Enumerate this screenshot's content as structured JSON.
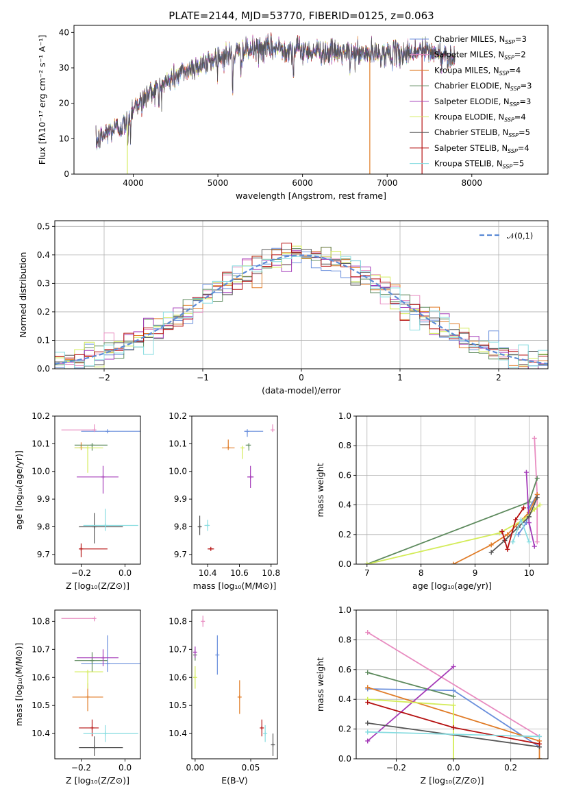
{
  "figure_title": "PLATE=2144, MJD=53770, FIBERID=0125, z=0.063",
  "colors": {
    "Chabrier MILES": "#6a8fdc",
    "Salpeter MILES": "#e88bc0",
    "Kroupa MILES": "#e07b26",
    "Chabrier ELODIE": "#5d8a5d",
    "Salpeter ELODIE": "#a43ab8",
    "Kroupa ELODIE": "#d4ec5a",
    "Chabrier STELIB": "#555555",
    "Salpeter STELIB": "#b51010",
    "Kroupa STELIB": "#86dce0"
  },
  "chart_data": [
    {
      "id": "spectrum",
      "type": "line",
      "title": "PLATE=2144, MJD=53770, FIBERID=0125, z=0.063",
      "xlabel": "wavelength [Angstrom, rest frame]",
      "ylabel": "Flux [fλ10⁻¹⁷ erg cm⁻² s⁻¹ A⁻¹]",
      "xlim": [
        3300,
        8900
      ],
      "ylim": [
        0,
        42
      ],
      "xticks": [
        4000,
        5000,
        6000,
        7000,
        8000
      ],
      "yticks": [
        0,
        10,
        20,
        30,
        40
      ],
      "grid": false,
      "legend_position": "right",
      "legend": [
        {
          "name": "Chabrier MILES",
          "sub": "N",
          "subscript": "SSP",
          "suffix": "=3"
        },
        {
          "name": "Salpeter MILES",
          "sub": "N",
          "subscript": "SSP",
          "suffix": "=2"
        },
        {
          "name": "Kroupa MILES",
          "sub": "N",
          "subscript": "SSP",
          "suffix": "=4"
        },
        {
          "name": "Chabrier ELODIE",
          "sub": "N",
          "subscript": "SSP",
          "suffix": "=3"
        },
        {
          "name": "Salpeter ELODIE",
          "sub": "N",
          "subscript": "SSP",
          "suffix": "=3"
        },
        {
          "name": "Kroupa ELODIE",
          "sub": "N",
          "subscript": "SSP",
          "suffix": "=4"
        },
        {
          "name": "Chabrier STELIB",
          "sub": "N",
          "subscript": "SSP",
          "suffix": "=5"
        },
        {
          "name": "Salpeter STELIB",
          "sub": "N",
          "subscript": "SSP",
          "suffix": "=4"
        },
        {
          "name": "Kroupa STELIB",
          "sub": "N",
          "subscript": "SSP",
          "suffix": "=5"
        }
      ],
      "continuum": {
        "x": [
          3560,
          3700,
          3900,
          4000,
          4200,
          4400,
          4600,
          4800,
          5000,
          5200,
          5400,
          5600,
          5800,
          6000,
          6300,
          6600,
          6900,
          7200,
          7400,
          7600,
          7800
        ],
        "y": [
          9,
          12,
          14,
          19,
          23,
          26,
          29,
          31,
          33,
          34,
          35,
          35.5,
          35.5,
          35,
          34.5,
          34,
          34,
          34,
          35,
          34,
          33
        ]
      },
      "absorption_lines": [
        {
          "x": 3934,
          "depth": 8
        },
        {
          "x": 3969,
          "depth": 7
        },
        {
          "x": 4102,
          "depth": 5
        },
        {
          "x": 4304,
          "depth": 6
        },
        {
          "x": 4861,
          "depth": 5
        },
        {
          "x": 5175,
          "depth": 10
        },
        {
          "x": 5270,
          "depth": 4
        },
        {
          "x": 5893,
          "depth": 8
        },
        {
          "x": 6563,
          "depth": 3
        }
      ],
      "drop_lines": [
        {
          "x": 3930,
          "y_from": 14,
          "y_to": 0,
          "color_key": "Kroupa ELODIE"
        },
        {
          "x": 6795,
          "y_from": 33,
          "y_to": 0,
          "color_key": "Kroupa MILES"
        },
        {
          "x": 7412,
          "y_from": 34,
          "y_to": 0,
          "color_key": "Salpeter STELIB"
        }
      ]
    },
    {
      "id": "residuals",
      "type": "bar",
      "xlabel": "(data-model)/error",
      "ylabel": "Normed distribution",
      "xlim": [
        -2.5,
        2.5
      ],
      "ylim": [
        0,
        0.52
      ],
      "xticks": [
        -2,
        -1,
        0,
        1,
        2
      ],
      "yticks": [
        0.0,
        0.1,
        0.2,
        0.3,
        0.4,
        0.5
      ],
      "grid": true,
      "bin_width": 0.1,
      "legend_position": "top-right",
      "reference_curve": {
        "name": "𝒩(0,1)",
        "mean": 0,
        "sigma": 1,
        "color": "#5b8bd6"
      }
    },
    {
      "id": "age-vs-Z",
      "type": "scatter",
      "xlabel": "Z [log₁₀(Z/Z⊙)]",
      "ylabel": "age  [log₁₀(age/yr)]",
      "xlim": [
        -0.32,
        0.07
      ],
      "ylim": [
        9.665,
        10.2
      ],
      "xticks": [
        -0.2,
        0.0
      ],
      "yticks": [
        9.7,
        9.8,
        9.9,
        10.0,
        10.1,
        10.2
      ],
      "grid": false,
      "points": [
        {
          "model": "Chabrier MILES",
          "x": -0.08,
          "y": 10.145,
          "xerr_lo": 0.12,
          "xerr_hi": 0.16,
          "yerr_lo": 0.0,
          "yerr_hi": 0.0
        },
        {
          "model": "Salpeter MILES",
          "x": -0.14,
          "y": 10.15,
          "xerr_lo": 0.15,
          "xerr_hi": 0.0,
          "yerr_lo": 0.0,
          "yerr_hi": 0.02
        },
        {
          "model": "Kroupa MILES",
          "x": -0.2,
          "y": 10.085,
          "xerr_lo": 0.03,
          "xerr_hi": 0.03,
          "yerr_lo": 0.0,
          "yerr_hi": 0.02
        },
        {
          "model": "Chabrier ELODIE",
          "x": -0.15,
          "y": 10.095,
          "xerr_lo": 0.08,
          "xerr_hi": 0.07,
          "yerr_lo": 0.02,
          "yerr_hi": 0.0
        },
        {
          "model": "Salpeter ELODIE",
          "x": -0.1,
          "y": 9.98,
          "xerr_lo": 0.12,
          "xerr_hi": 0.07,
          "yerr_lo": 0.06,
          "yerr_hi": 0.04
        },
        {
          "model": "Kroupa ELODIE",
          "x": -0.17,
          "y": 10.085,
          "xerr_lo": 0.06,
          "xerr_hi": 0.07,
          "yerr_lo": 0.09,
          "yerr_hi": 0.0
        },
        {
          "model": "Chabrier STELIB",
          "x": -0.14,
          "y": 9.8,
          "xerr_lo": 0.07,
          "xerr_hi": 0.13,
          "yerr_lo": 0.06,
          "yerr_hi": 0.05
        },
        {
          "model": "Salpeter STELIB",
          "x": -0.2,
          "y": 9.72,
          "xerr_lo": 0.01,
          "xerr_hi": 0.12,
          "yerr_lo": 0.03,
          "yerr_hi": 0.02
        },
        {
          "model": "Kroupa STELIB",
          "x": -0.09,
          "y": 9.805,
          "xerr_lo": 0.1,
          "xerr_hi": 0.15,
          "yerr_lo": 0.02,
          "yerr_hi": 0.06
        }
      ]
    },
    {
      "id": "age-vs-mass",
      "type": "scatter",
      "xlabel": "mass [log₁₀(M/M⊙)]",
      "ylabel": "",
      "xlim": [
        10.3,
        10.84
      ],
      "ylim": [
        9.665,
        10.2
      ],
      "xticks": [
        10.4,
        10.6,
        10.8
      ],
      "yticks": [
        9.7,
        9.8,
        9.9,
        10.0,
        10.1,
        10.2
      ],
      "grid": false,
      "points": [
        {
          "model": "Chabrier MILES",
          "x": 10.65,
          "y": 10.145,
          "xerr_lo": 0.02,
          "xerr_hi": 0.1,
          "yerr_lo": 0.02,
          "yerr_hi": 0.0
        },
        {
          "model": "Salpeter MILES",
          "x": 10.81,
          "y": 10.15,
          "xerr_lo": 0.0,
          "xerr_hi": 0.0,
          "yerr_lo": 0.0,
          "yerr_hi": 0.02
        },
        {
          "model": "Kroupa MILES",
          "x": 10.53,
          "y": 10.085,
          "xerr_lo": 0.04,
          "xerr_hi": 0.04,
          "yerr_lo": 0.0,
          "yerr_hi": 0.03
        },
        {
          "model": "Chabrier ELODIE",
          "x": 10.66,
          "y": 10.095,
          "xerr_lo": 0.02,
          "xerr_hi": 0.0,
          "yerr_lo": 0.02,
          "yerr_hi": 0.0
        },
        {
          "model": "Salpeter ELODIE",
          "x": 10.67,
          "y": 9.98,
          "xerr_lo": 0.02,
          "xerr_hi": 0.02,
          "yerr_lo": 0.04,
          "yerr_hi": 0.04
        },
        {
          "model": "Kroupa ELODIE",
          "x": 10.62,
          "y": 10.085,
          "xerr_lo": 0.0,
          "xerr_hi": 0.0,
          "yerr_lo": 0.04,
          "yerr_hi": 0.0
        },
        {
          "model": "Chabrier STELIB",
          "x": 10.35,
          "y": 9.8,
          "xerr_lo": 0.01,
          "xerr_hi": 0.01,
          "yerr_lo": 0.03,
          "yerr_hi": 0.04
        },
        {
          "model": "Salpeter STELIB",
          "x": 10.42,
          "y": 9.72,
          "xerr_lo": 0.02,
          "xerr_hi": 0.02,
          "yerr_lo": 0.0,
          "yerr_hi": 0.0
        },
        {
          "model": "Kroupa STELIB",
          "x": 10.4,
          "y": 9.805,
          "xerr_lo": 0.02,
          "xerr_hi": 0.01,
          "yerr_lo": 0.02,
          "yerr_hi": 0.02
        }
      ]
    },
    {
      "id": "weight-vs-age",
      "type": "line",
      "xlabel": "age  [log₁₀(age/yr)]",
      "ylabel": "mass weight",
      "xlim": [
        6.8,
        10.35
      ],
      "ylim": [
        0,
        1.0
      ],
      "xticks": [
        7,
        8,
        9,
        10
      ],
      "yticks": [
        0.0,
        0.2,
        0.4,
        0.6,
        0.8,
        1.0
      ],
      "grid": true,
      "series": [
        {
          "model": "Chabrier MILES",
          "x": [
            9.8,
            9.95,
            10.0,
            10.15
          ],
          "y": [
            0.2,
            0.28,
            0.38,
            0.47
          ]
        },
        {
          "model": "Salpeter MILES",
          "x": [
            10.1,
            10.15,
            10.15
          ],
          "y": [
            0.85,
            0.47,
            0.15
          ]
        },
        {
          "model": "Kroupa MILES",
          "x": [
            8.6,
            9.3,
            9.6,
            10.0,
            10.15
          ],
          "y": [
            0.0,
            0.13,
            0.2,
            0.35,
            0.47
          ]
        },
        {
          "model": "Chabrier ELODIE",
          "x": [
            7.0,
            10.0,
            10.15
          ],
          "y": [
            0.0,
            0.42,
            0.58
          ]
        },
        {
          "model": "Salpeter ELODIE",
          "x": [
            9.95,
            10.0,
            10.1
          ],
          "y": [
            0.62,
            0.28,
            0.12
          ]
        },
        {
          "model": "Kroupa ELODIE",
          "x": [
            7.0,
            9.45,
            9.9,
            10.1,
            10.2
          ],
          "y": [
            0.0,
            0.21,
            0.3,
            0.37,
            0.4
          ]
        },
        {
          "model": "Chabrier STELIB",
          "x": [
            9.3,
            9.55,
            9.8,
            10.0,
            10.15
          ],
          "y": [
            0.08,
            0.16,
            0.25,
            0.32,
            0.45
          ]
        },
        {
          "model": "Salpeter STELIB",
          "x": [
            9.5,
            9.6,
            9.75,
            9.9
          ],
          "y": [
            0.22,
            0.1,
            0.3,
            0.38
          ]
        },
        {
          "model": "Kroupa STELIB",
          "x": [
            9.7,
            9.85,
            10.0
          ],
          "y": [
            0.15,
            0.3,
            0.15
          ]
        }
      ]
    },
    {
      "id": "mass-vs-Z",
      "type": "scatter",
      "xlabel": "Z [log₁₀(Z/Z⊙)]",
      "ylabel": "mass [log₁₀(M/M⊙)]",
      "xlim": [
        -0.32,
        0.07
      ],
      "ylim": [
        10.31,
        10.84
      ],
      "xticks": [
        -0.2,
        0.0
      ],
      "yticks": [
        10.4,
        10.5,
        10.6,
        10.7,
        10.8
      ],
      "grid": false,
      "points": [
        {
          "model": "Chabrier MILES",
          "x": -0.08,
          "y": 10.65,
          "xerr_lo": 0.12,
          "xerr_hi": 0.16,
          "yerr_lo": 0.03,
          "yerr_hi": 0.1
        },
        {
          "model": "Salpeter MILES",
          "x": -0.14,
          "y": 10.81,
          "xerr_lo": 0.15,
          "xerr_hi": 0.0,
          "yerr_lo": 0.01,
          "yerr_hi": 0.0
        },
        {
          "model": "Kroupa MILES",
          "x": -0.17,
          "y": 10.53,
          "xerr_lo": 0.07,
          "xerr_hi": 0.07,
          "yerr_lo": 0.05,
          "yerr_hi": 0.05
        },
        {
          "model": "Chabrier ELODIE",
          "x": -0.15,
          "y": 10.66,
          "xerr_lo": 0.08,
          "xerr_hi": 0.07,
          "yerr_lo": 0.04,
          "yerr_hi": 0.03
        },
        {
          "model": "Salpeter ELODIE",
          "x": -0.1,
          "y": 10.67,
          "xerr_lo": 0.12,
          "xerr_hi": 0.07,
          "yerr_lo": 0.03,
          "yerr_hi": 0.03
        },
        {
          "model": "Kroupa ELODIE",
          "x": -0.17,
          "y": 10.62,
          "xerr_lo": 0.06,
          "xerr_hi": 0.07,
          "yerr_lo": 0.06,
          "yerr_hi": 0.0
        },
        {
          "model": "Chabrier STELIB",
          "x": -0.14,
          "y": 10.35,
          "xerr_lo": 0.07,
          "xerr_hi": 0.13,
          "yerr_lo": 0.03,
          "yerr_hi": 0.04
        },
        {
          "model": "Salpeter STELIB",
          "x": -0.15,
          "y": 10.42,
          "xerr_lo": 0.06,
          "xerr_hi": 0.03,
          "yerr_lo": 0.03,
          "yerr_hi": 0.03
        },
        {
          "model": "Kroupa STELIB",
          "x": -0.09,
          "y": 10.4,
          "xerr_lo": 0.1,
          "xerr_hi": 0.15,
          "yerr_lo": 0.03,
          "yerr_hi": 0.03
        }
      ]
    },
    {
      "id": "mass-vs-ebv",
      "type": "scatter",
      "xlabel": "E(B-V)",
      "ylabel": "",
      "xlim": [
        -0.003,
        0.074
      ],
      "ylim": [
        10.31,
        10.84
      ],
      "xticks": [
        0.0,
        0.05
      ],
      "yticks": [
        10.4,
        10.5,
        10.6,
        10.7,
        10.8
      ],
      "grid": false,
      "points": [
        {
          "model": "Chabrier MILES",
          "x": 0.02,
          "y": 10.68,
          "yerr_lo": 0.07,
          "yerr_hi": 0.07
        },
        {
          "model": "Salpeter MILES",
          "x": 0.007,
          "y": 10.8,
          "yerr_lo": 0.02,
          "yerr_hi": 0.02
        },
        {
          "model": "Kroupa MILES",
          "x": 0.04,
          "y": 10.53,
          "yerr_lo": 0.06,
          "yerr_hi": 0.06
        },
        {
          "model": "Chabrier ELODIE",
          "x": 0.0,
          "y": 10.68,
          "yerr_lo": 0.02,
          "yerr_hi": 0.02
        },
        {
          "model": "Salpeter ELODIE",
          "x": 0.0,
          "y": 10.69,
          "yerr_lo": 0.02,
          "yerr_hi": 0.02
        },
        {
          "model": "Kroupa ELODIE",
          "x": 0.0,
          "y": 10.6,
          "yerr_lo": 0.04,
          "yerr_hi": 0.04
        },
        {
          "model": "Chabrier STELIB",
          "x": 0.07,
          "y": 10.36,
          "yerr_lo": 0.04,
          "yerr_hi": 0.04
        },
        {
          "model": "Salpeter STELIB",
          "x": 0.06,
          "y": 10.42,
          "yerr_lo": 0.03,
          "yerr_hi": 0.03
        },
        {
          "model": "Kroupa STELIB",
          "x": 0.063,
          "y": 10.4,
          "yerr_lo": 0.03,
          "yerr_hi": 0.03
        }
      ]
    },
    {
      "id": "weight-vs-Z",
      "type": "line",
      "xlabel": "Z [log₁₀(Z/Z⊙)]",
      "ylabel": "mass weight",
      "xlim": [
        -0.34,
        0.33
      ],
      "ylim": [
        0,
        1.0
      ],
      "xticks": [
        -0.2,
        0.0,
        0.2
      ],
      "yticks": [
        0.0,
        0.2,
        0.4,
        0.6,
        0.8,
        1.0
      ],
      "grid": true,
      "series": [
        {
          "model": "Chabrier MILES",
          "x": [
            -0.3,
            0.0,
            0.3
          ],
          "y": [
            0.47,
            0.46,
            0.08
          ]
        },
        {
          "model": "Salpeter MILES",
          "x": [
            -0.3,
            0.3
          ],
          "y": [
            0.85,
            0.15
          ]
        },
        {
          "model": "Kroupa MILES",
          "x": [
            -0.3,
            0.3,
            0.3
          ],
          "y": [
            0.48,
            0.12,
            0.0
          ]
        },
        {
          "model": "Chabrier ELODIE",
          "x": [
            -0.3,
            0.0
          ],
          "y": [
            0.58,
            0.42
          ]
        },
        {
          "model": "Salpeter ELODIE",
          "x": [
            -0.3,
            0.0
          ],
          "y": [
            0.12,
            0.62
          ]
        },
        {
          "model": "Kroupa ELODIE",
          "x": [
            -0.3,
            0.0,
            0.0
          ],
          "y": [
            0.4,
            0.36,
            0.0
          ]
        },
        {
          "model": "Chabrier STELIB",
          "x": [
            -0.3,
            0.3
          ],
          "y": [
            0.24,
            0.08
          ]
        },
        {
          "model": "Salpeter STELIB",
          "x": [
            -0.3,
            0.0,
            0.3
          ],
          "y": [
            0.38,
            0.21,
            0.1
          ]
        },
        {
          "model": "Kroupa STELIB",
          "x": [
            -0.3,
            0.3
          ],
          "y": [
            0.18,
            0.15
          ]
        }
      ]
    }
  ]
}
